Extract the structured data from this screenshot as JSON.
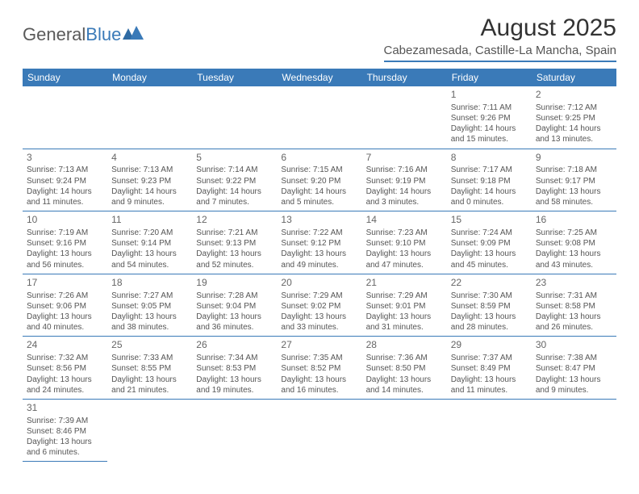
{
  "brand": {
    "part1": "General",
    "part2": "Blue"
  },
  "title": "August 2025",
  "location": "Cabezamesada, Castille-La Mancha, Spain",
  "colors": {
    "accent": "#3a7ab8",
    "header_text": "#ffffff",
    "body_text": "#555555",
    "title_text": "#333333",
    "background": "#ffffff"
  },
  "daysOfWeek": [
    "Sunday",
    "Monday",
    "Tuesday",
    "Wednesday",
    "Thursday",
    "Friday",
    "Saturday"
  ],
  "weeks": [
    [
      null,
      null,
      null,
      null,
      null,
      {
        "n": "1",
        "sr": "Sunrise: 7:11 AM",
        "ss": "Sunset: 9:26 PM",
        "d1": "Daylight: 14 hours",
        "d2": "and 15 minutes."
      },
      {
        "n": "2",
        "sr": "Sunrise: 7:12 AM",
        "ss": "Sunset: 9:25 PM",
        "d1": "Daylight: 14 hours",
        "d2": "and 13 minutes."
      }
    ],
    [
      {
        "n": "3",
        "sr": "Sunrise: 7:13 AM",
        "ss": "Sunset: 9:24 PM",
        "d1": "Daylight: 14 hours",
        "d2": "and 11 minutes."
      },
      {
        "n": "4",
        "sr": "Sunrise: 7:13 AM",
        "ss": "Sunset: 9:23 PM",
        "d1": "Daylight: 14 hours",
        "d2": "and 9 minutes."
      },
      {
        "n": "5",
        "sr": "Sunrise: 7:14 AM",
        "ss": "Sunset: 9:22 PM",
        "d1": "Daylight: 14 hours",
        "d2": "and 7 minutes."
      },
      {
        "n": "6",
        "sr": "Sunrise: 7:15 AM",
        "ss": "Sunset: 9:20 PM",
        "d1": "Daylight: 14 hours",
        "d2": "and 5 minutes."
      },
      {
        "n": "7",
        "sr": "Sunrise: 7:16 AM",
        "ss": "Sunset: 9:19 PM",
        "d1": "Daylight: 14 hours",
        "d2": "and 3 minutes."
      },
      {
        "n": "8",
        "sr": "Sunrise: 7:17 AM",
        "ss": "Sunset: 9:18 PM",
        "d1": "Daylight: 14 hours",
        "d2": "and 0 minutes."
      },
      {
        "n": "9",
        "sr": "Sunrise: 7:18 AM",
        "ss": "Sunset: 9:17 PM",
        "d1": "Daylight: 13 hours",
        "d2": "and 58 minutes."
      }
    ],
    [
      {
        "n": "10",
        "sr": "Sunrise: 7:19 AM",
        "ss": "Sunset: 9:16 PM",
        "d1": "Daylight: 13 hours",
        "d2": "and 56 minutes."
      },
      {
        "n": "11",
        "sr": "Sunrise: 7:20 AM",
        "ss": "Sunset: 9:14 PM",
        "d1": "Daylight: 13 hours",
        "d2": "and 54 minutes."
      },
      {
        "n": "12",
        "sr": "Sunrise: 7:21 AM",
        "ss": "Sunset: 9:13 PM",
        "d1": "Daylight: 13 hours",
        "d2": "and 52 minutes."
      },
      {
        "n": "13",
        "sr": "Sunrise: 7:22 AM",
        "ss": "Sunset: 9:12 PM",
        "d1": "Daylight: 13 hours",
        "d2": "and 49 minutes."
      },
      {
        "n": "14",
        "sr": "Sunrise: 7:23 AM",
        "ss": "Sunset: 9:10 PM",
        "d1": "Daylight: 13 hours",
        "d2": "and 47 minutes."
      },
      {
        "n": "15",
        "sr": "Sunrise: 7:24 AM",
        "ss": "Sunset: 9:09 PM",
        "d1": "Daylight: 13 hours",
        "d2": "and 45 minutes."
      },
      {
        "n": "16",
        "sr": "Sunrise: 7:25 AM",
        "ss": "Sunset: 9:08 PM",
        "d1": "Daylight: 13 hours",
        "d2": "and 43 minutes."
      }
    ],
    [
      {
        "n": "17",
        "sr": "Sunrise: 7:26 AM",
        "ss": "Sunset: 9:06 PM",
        "d1": "Daylight: 13 hours",
        "d2": "and 40 minutes."
      },
      {
        "n": "18",
        "sr": "Sunrise: 7:27 AM",
        "ss": "Sunset: 9:05 PM",
        "d1": "Daylight: 13 hours",
        "d2": "and 38 minutes."
      },
      {
        "n": "19",
        "sr": "Sunrise: 7:28 AM",
        "ss": "Sunset: 9:04 PM",
        "d1": "Daylight: 13 hours",
        "d2": "and 36 minutes."
      },
      {
        "n": "20",
        "sr": "Sunrise: 7:29 AM",
        "ss": "Sunset: 9:02 PM",
        "d1": "Daylight: 13 hours",
        "d2": "and 33 minutes."
      },
      {
        "n": "21",
        "sr": "Sunrise: 7:29 AM",
        "ss": "Sunset: 9:01 PM",
        "d1": "Daylight: 13 hours",
        "d2": "and 31 minutes."
      },
      {
        "n": "22",
        "sr": "Sunrise: 7:30 AM",
        "ss": "Sunset: 8:59 PM",
        "d1": "Daylight: 13 hours",
        "d2": "and 28 minutes."
      },
      {
        "n": "23",
        "sr": "Sunrise: 7:31 AM",
        "ss": "Sunset: 8:58 PM",
        "d1": "Daylight: 13 hours",
        "d2": "and 26 minutes."
      }
    ],
    [
      {
        "n": "24",
        "sr": "Sunrise: 7:32 AM",
        "ss": "Sunset: 8:56 PM",
        "d1": "Daylight: 13 hours",
        "d2": "and 24 minutes."
      },
      {
        "n": "25",
        "sr": "Sunrise: 7:33 AM",
        "ss": "Sunset: 8:55 PM",
        "d1": "Daylight: 13 hours",
        "d2": "and 21 minutes."
      },
      {
        "n": "26",
        "sr": "Sunrise: 7:34 AM",
        "ss": "Sunset: 8:53 PM",
        "d1": "Daylight: 13 hours",
        "d2": "and 19 minutes."
      },
      {
        "n": "27",
        "sr": "Sunrise: 7:35 AM",
        "ss": "Sunset: 8:52 PM",
        "d1": "Daylight: 13 hours",
        "d2": "and 16 minutes."
      },
      {
        "n": "28",
        "sr": "Sunrise: 7:36 AM",
        "ss": "Sunset: 8:50 PM",
        "d1": "Daylight: 13 hours",
        "d2": "and 14 minutes."
      },
      {
        "n": "29",
        "sr": "Sunrise: 7:37 AM",
        "ss": "Sunset: 8:49 PM",
        "d1": "Daylight: 13 hours",
        "d2": "and 11 minutes."
      },
      {
        "n": "30",
        "sr": "Sunrise: 7:38 AM",
        "ss": "Sunset: 8:47 PM",
        "d1": "Daylight: 13 hours",
        "d2": "and 9 minutes."
      }
    ],
    [
      {
        "n": "31",
        "sr": "Sunrise: 7:39 AM",
        "ss": "Sunset: 8:46 PM",
        "d1": "Daylight: 13 hours",
        "d2": "and 6 minutes."
      },
      null,
      null,
      null,
      null,
      null,
      null
    ]
  ]
}
